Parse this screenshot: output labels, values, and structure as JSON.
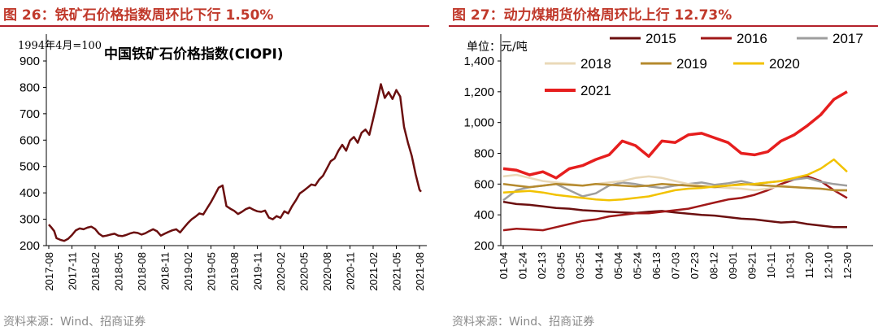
{
  "left": {
    "title": "图 26：铁矿石价格指数周环比下行 1.50%",
    "source": "资料来源：Wind、招商证券",
    "chart_data": {
      "type": "line",
      "title": "中国铁矿石价格指数(CIOPI)",
      "note": "1994年4月=100",
      "ylim": [
        200,
        900
      ],
      "yticks": [
        "200",
        "300",
        "400",
        "500",
        "600",
        "700",
        "800",
        "900"
      ],
      "xticks": [
        "2017-08",
        "2017-11",
        "2018-02",
        "2018-05",
        "2018-08",
        "2018-11",
        "2019-02",
        "2019-05",
        "2019-08",
        "2019-11",
        "2020-02",
        "2020-05",
        "2020-08",
        "2020-11",
        "2021-02",
        "2021-05",
        "2021-08"
      ],
      "color": "#6b0f0f",
      "series": [
        {
          "name": "CIOPI",
          "x": [
            0,
            0.3,
            0.7,
            1,
            1.5,
            2,
            2.5,
            3,
            3.5,
            4,
            4.5,
            5,
            5.5,
            6,
            6.5,
            7,
            7.5,
            8,
            8.5,
            9,
            9.5,
            10,
            10.5,
            11,
            11.5,
            12,
            12.5,
            13,
            13.5,
            14,
            14.5,
            15,
            15.5,
            16,
            16.5,
            17,
            17.5,
            18,
            18.5,
            19,
            19.5,
            20,
            20.5,
            21,
            21.5,
            22,
            22.5,
            23,
            23.5,
            24,
            24.5,
            25,
            25.5,
            26,
            26.5,
            27,
            27.5,
            28,
            28.5,
            29,
            29.5,
            30,
            30.5,
            31,
            31.5,
            32,
            32.5,
            33,
            33.5,
            34,
            34.5,
            35,
            35.5,
            36,
            36.5,
            37,
            37.5,
            38,
            38.5,
            39,
            39.5,
            40,
            40.5,
            41,
            41.5,
            42,
            42.5,
            43,
            43.5,
            44,
            44.5,
            45,
            45.5,
            46,
            46.5,
            47,
            47.5,
            48,
            48.2
          ],
          "values": [
            280,
            270,
            255,
            228,
            222,
            218,
            226,
            240,
            258,
            265,
            262,
            268,
            272,
            263,
            245,
            235,
            238,
            242,
            245,
            238,
            236,
            240,
            246,
            250,
            248,
            242,
            247,
            255,
            262,
            255,
            238,
            245,
            252,
            258,
            262,
            250,
            268,
            285,
            300,
            310,
            322,
            318,
            342,
            365,
            392,
            420,
            428,
            350,
            340,
            332,
            320,
            328,
            338,
            344,
            336,
            330,
            328,
            333,
            306,
            300,
            312,
            305,
            330,
            322,
            350,
            372,
            398,
            408,
            420,
            432,
            428,
            450,
            465,
            492,
            520,
            530,
            560,
            582,
            560,
            598,
            612,
            590,
            628,
            640,
            620,
            680,
            745,
            812,
            760,
            782,
            756,
            790,
            765,
            650,
            590,
            540,
            470,
            412,
            404
          ]
        }
      ]
    }
  },
  "right": {
    "title": "图 27：动力煤期货价格周环比上行 12.73%",
    "source": "资料来源：Wind、招商证券",
    "chart_data": {
      "type": "line",
      "unit": "单位：元/吨",
      "ylim": [
        200,
        1400
      ],
      "yticks": [
        "200",
        "400",
        "600",
        "800",
        "1,000",
        "1,200",
        "1,400"
      ],
      "xticks": [
        "01-04",
        "01-24",
        "02-13",
        "03-05",
        "03-25",
        "04-14",
        "05-04",
        "05-24",
        "06-13",
        "07-03",
        "07-23",
        "08-12",
        "09-01",
        "09-21",
        "10-11",
        "10-31",
        "11-20",
        "12-10",
        "12-30"
      ],
      "x": [
        0,
        2,
        4,
        6,
        8,
        10,
        12,
        14,
        16,
        18,
        20,
        22,
        24,
        26,
        28,
        30,
        32,
        34,
        36,
        38,
        40,
        42,
        44,
        46,
        48,
        50,
        52
      ],
      "series": [
        {
          "name": "2015",
          "color": "#6b0f0f",
          "values": [
            485,
            470,
            465,
            455,
            445,
            440,
            430,
            425,
            420,
            415,
            412,
            420,
            425,
            415,
            408,
            400,
            395,
            385,
            375,
            370,
            360,
            350,
            355,
            340,
            330,
            320,
            320
          ]
        },
        {
          "name": "2016",
          "color": "#a01818",
          "values": [
            300,
            310,
            305,
            300,
            320,
            340,
            360,
            370,
            390,
            400,
            410,
            410,
            420,
            430,
            440,
            460,
            480,
            500,
            510,
            530,
            560,
            600,
            630,
            650,
            620,
            560,
            510
          ]
        },
        {
          "name": "2017",
          "color": "#9e9e9e",
          "values": [
            495,
            560,
            580,
            590,
            600,
            560,
            520,
            540,
            590,
            610,
            600,
            585,
            575,
            590,
            600,
            610,
            595,
            605,
            620,
            600,
            610,
            620,
            630,
            640,
            615,
            600,
            590
          ]
        },
        {
          "name": "2018",
          "color": "#ead9b8",
          "values": [
            650,
            660,
            640,
            620,
            610,
            600,
            590,
            600,
            610,
            620,
            640,
            650,
            640,
            620,
            600,
            590,
            580,
            575,
            570,
            560,
            570,
            590,
            580,
            575,
            570,
            560,
            555
          ]
        },
        {
          "name": "2019",
          "color": "#b58a2e",
          "values": [
            600,
            590,
            580,
            590,
            600,
            595,
            590,
            600,
            595,
            590,
            585,
            590,
            600,
            595,
            590,
            585,
            580,
            590,
            600,
            595,
            590,
            585,
            580,
            575,
            570,
            560,
            560
          ]
        },
        {
          "name": "2020",
          "color": "#f2c200",
          "values": [
            545,
            550,
            555,
            545,
            530,
            520,
            510,
            500,
            495,
            500,
            510,
            520,
            540,
            560,
            570,
            575,
            585,
            590,
            595,
            600,
            610,
            620,
            640,
            660,
            700,
            760,
            680
          ]
        },
        {
          "name": "2021",
          "color": "#e61e1e",
          "values": [
            700,
            690,
            660,
            680,
            640,
            700,
            720,
            760,
            790,
            880,
            850,
            780,
            880,
            870,
            920,
            930,
            900,
            870,
            800,
            790,
            810,
            880,
            920,
            980,
            1050,
            1150,
            1200
          ]
        }
      ]
    }
  }
}
